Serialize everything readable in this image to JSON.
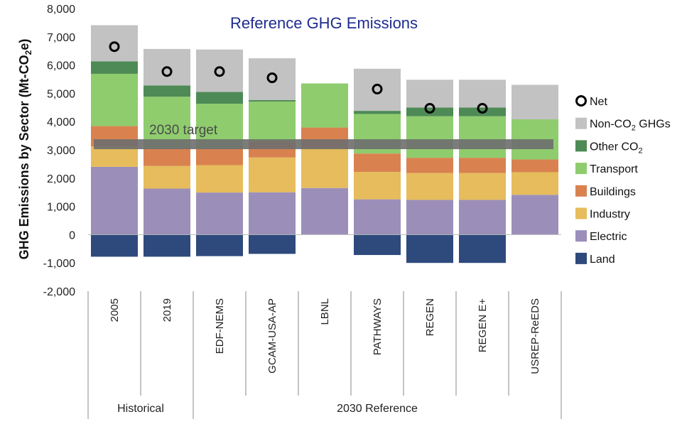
{
  "chart_data": {
    "type": "bar",
    "stacked": true,
    "title": "Reference GHG Emissions",
    "ylabel": "GHG Emissions by Sector (Mt-CO2e)",
    "ylim": [
      -2000,
      8000
    ],
    "yticks": [
      -2000,
      -1000,
      0,
      1000,
      2000,
      3000,
      4000,
      5000,
      6000,
      7000,
      8000
    ],
    "ytick_labels": [
      "-2,000",
      "-1,000",
      "0",
      "1,000",
      "2,000",
      "3,000",
      "4,000",
      "5,000",
      "6,000",
      "7,000",
      "8,000"
    ],
    "categories": [
      "2005",
      "2019",
      "EDF-NEMS",
      "GCAM-USA-AP",
      "LBNL",
      "PATHWAYS",
      "REGEN",
      "REGEN E+",
      "USREP-ReEDS"
    ],
    "groups": [
      {
        "label": "Historical",
        "start": 0,
        "end": 1
      },
      {
        "label": "2030 Reference",
        "start": 2,
        "end": 8
      }
    ],
    "series": [
      {
        "name": "Land",
        "color": "#2e4a7d",
        "values": [
          -780,
          -780,
          -760,
          -680,
          0,
          -720,
          -1000,
          -1000,
          0
        ]
      },
      {
        "name": "Electric",
        "color": "#9b8fba",
        "values": [
          2400,
          1630,
          1490,
          1500,
          1650,
          1250,
          1230,
          1230,
          1410
        ]
      },
      {
        "name": "Industry",
        "color": "#e6bc5c",
        "values": [
          720,
          800,
          970,
          1230,
          1410,
          970,
          950,
          950,
          800
        ]
      },
      {
        "name": "Buildings",
        "color": "#d9824f",
        "values": [
          720,
          610,
          580,
          560,
          730,
          650,
          540,
          540,
          450
        ]
      },
      {
        "name": "Transport",
        "color": "#8fcc6e",
        "values": [
          1850,
          1840,
          1590,
          1420,
          1560,
          1400,
          1470,
          1470,
          1420
        ]
      },
      {
        "name": "Other CO2",
        "color": "#4e8a55",
        "values": [
          440,
          400,
          420,
          50,
          0,
          110,
          310,
          310,
          0
        ]
      },
      {
        "name": "Non-CO2 GHGs",
        "color": "#c2c2c2",
        "values": [
          1280,
          1290,
          1500,
          1480,
          0,
          1490,
          980,
          980,
          1220
        ]
      }
    ],
    "net": [
      6650,
      5770,
      5770,
      5550,
      null,
      5150,
      4470,
      4470,
      null
    ],
    "target": {
      "label": "2030 target",
      "value": 3200
    },
    "legend": {
      "placement": "right",
      "items": [
        {
          "name": "Net",
          "kind": "circle"
        },
        {
          "name": "Non-CO2 GHGs",
          "color": "#c2c2c2"
        },
        {
          "name": "Other CO2",
          "color": "#4e8a55"
        },
        {
          "name": "Transport",
          "color": "#8fcc6e"
        },
        {
          "name": "Buildings",
          "color": "#d9824f"
        },
        {
          "name": "Industry",
          "color": "#e6bc5c"
        },
        {
          "name": "Electric",
          "color": "#9b8fba"
        },
        {
          "name": "Land",
          "color": "#2e4a7d"
        }
      ]
    },
    "grid": false
  }
}
